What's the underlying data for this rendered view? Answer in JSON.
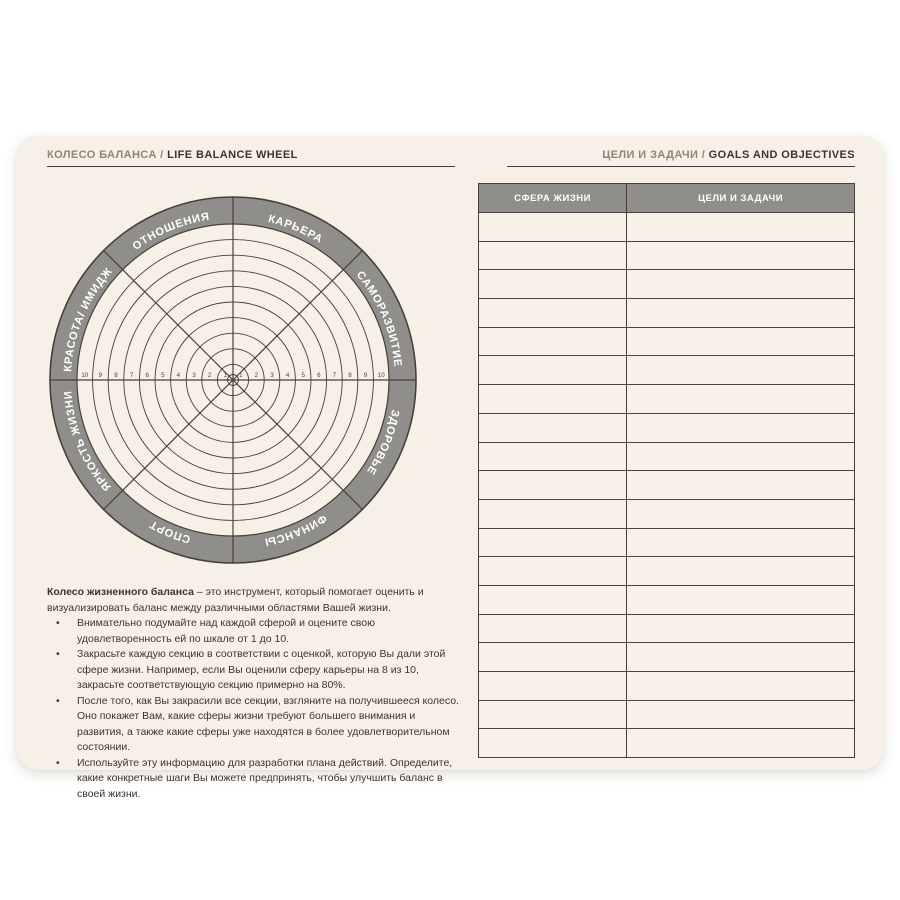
{
  "headers": {
    "left_ru": "КОЛЕСО БАЛАНСА / ",
    "left_en": "LIFE BALANCE WHEEL",
    "right_ru": "ЦЕЛИ И ЗАДАЧИ / ",
    "right_en": "GOALS AND OBJECTIVES"
  },
  "wheel": {
    "sectors": [
      "КАРЬЕРА",
      "САМОРАЗВИТИЕ",
      "ЗДОРОВЬЕ",
      "ФИНАНСЫ",
      "СПОРТ",
      "ЯРКОСТЬ ЖИЗНИ",
      "КРАСОТА/ ИМИДЖ",
      "ОТНОШЕНИЯ"
    ],
    "scale": [
      1,
      2,
      3,
      4,
      5,
      6,
      7,
      8,
      9,
      10
    ],
    "rings": 10
  },
  "description": {
    "lead_bold": "Колесо жизненного баланса",
    "lead_rest": " – это инструмент, который помогает оценить и визуализировать баланс между различными областями Вашей жизни.",
    "bullet_char": "•",
    "bullets": [
      "Внимательно подумайте над каждой сферой и оцените свою удовлетворенность ей по шкале от 1 до 10.",
      "Закрасьте каждую секцию в соответствии с оценкой, которую Вы дали этой сфере жизни. Например, если Вы оценили сферу карьеры на 8 из 10, закрасьте соответствующую секцию примерно на 80%.",
      "После того, как Вы закрасили все секции, взгляните на получившееся колесо. Оно покажет Вам, какие сферы жизни требуют большего внимания и развития, а также какие сферы уже находятся в более удовлетворительном состоянии.",
      "Используйте эту информацию для разработки плана действий. Определите, какие конкретные шаги Вы можете предпринять, чтобы улучшить баланс в своей жизни."
    ]
  },
  "table": {
    "columns": [
      "СФЕРА ЖИЗНИ",
      "ЦЕЛИ И ЗАДАЧИ"
    ],
    "row_count": 19
  },
  "colors": {
    "page_cream": "#f6f0e6",
    "ring_gray": "#8f8e8b",
    "line_dark": "#474038",
    "text_dark": "#3b352c",
    "header_muted": "#8d8577",
    "label_white": "#ffffff"
  }
}
